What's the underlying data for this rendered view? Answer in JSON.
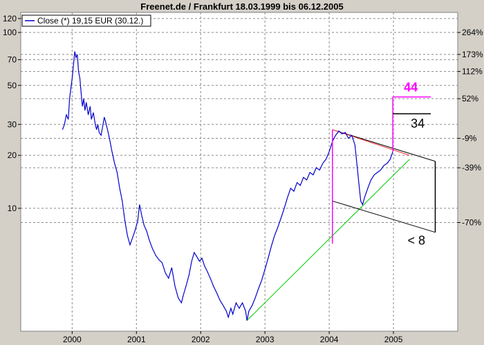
{
  "chart_data": {
    "type": "line",
    "title": "Freenet.de / Frankfurt 18.03.1999 bis 06.12.2005",
    "legend": "Close (*) 19,15 EUR (30.12.)",
    "legend_placement": "top-left",
    "y_scale": "log",
    "grid": true,
    "ylim": [
      2,
      130
    ],
    "xlim": [
      1999.2,
      2006.0
    ],
    "y_ticks_left": [
      10,
      20,
      30,
      50,
      70,
      100,
      120
    ],
    "y_ticks_right": [
      {
        "value": 100,
        "label": "264%"
      },
      {
        "value": 75,
        "label": "173%"
      },
      {
        "value": 60,
        "label": "112%"
      },
      {
        "value": 42,
        "label": "52%"
      },
      {
        "value": 25,
        "label": "-9%"
      },
      {
        "value": 17,
        "label": "-39%"
      },
      {
        "value": 8.3,
        "label": "-70%"
      }
    ],
    "x_ticks": [
      {
        "value": 2000,
        "label": "2000"
      },
      {
        "value": 2001,
        "label": "2001"
      },
      {
        "value": 2002,
        "label": "2002"
      },
      {
        "value": 2003,
        "label": "2003"
      },
      {
        "value": 2004,
        "label": "2004"
      },
      {
        "value": 2005,
        "label": "2005"
      }
    ],
    "series": [
      {
        "color": "#0000cc",
        "points": [
          [
            1999.85,
            28
          ],
          [
            1999.88,
            30
          ],
          [
            1999.91,
            34
          ],
          [
            1999.94,
            32
          ],
          [
            1999.96,
            42
          ],
          [
            2000.0,
            55
          ],
          [
            2000.02,
            65
          ],
          [
            2000.04,
            78
          ],
          [
            2000.06,
            72
          ],
          [
            2000.08,
            75
          ],
          [
            2000.1,
            60
          ],
          [
            2000.12,
            55
          ],
          [
            2000.14,
            45
          ],
          [
            2000.16,
            38
          ],
          [
            2000.18,
            42
          ],
          [
            2000.2,
            36
          ],
          [
            2000.22,
            40
          ],
          [
            2000.25,
            34
          ],
          [
            2000.28,
            38
          ],
          [
            2000.3,
            32
          ],
          [
            2000.33,
            35
          ],
          [
            2000.36,
            30
          ],
          [
            2000.38,
            28
          ],
          [
            2000.4,
            30
          ],
          [
            2000.42,
            27
          ],
          [
            2000.45,
            26
          ],
          [
            2000.48,
            30
          ],
          [
            2000.5,
            33
          ],
          [
            2000.52,
            31
          ],
          [
            2000.55,
            28
          ],
          [
            2000.58,
            25
          ],
          [
            2000.62,
            21
          ],
          [
            2000.66,
            18
          ],
          [
            2000.7,
            16
          ],
          [
            2000.74,
            13
          ],
          [
            2000.78,
            11
          ],
          [
            2000.82,
            8.5
          ],
          [
            2000.86,
            7
          ],
          [
            2000.9,
            6.2
          ],
          [
            2000.94,
            6.8
          ],
          [
            2000.98,
            7.5
          ],
          [
            2001.02,
            8.5
          ],
          [
            2001.05,
            10.5
          ],
          [
            2001.08,
            9.2
          ],
          [
            2001.12,
            8
          ],
          [
            2001.16,
            7.4
          ],
          [
            2001.2,
            6.6
          ],
          [
            2001.25,
            5.9
          ],
          [
            2001.3,
            5.4
          ],
          [
            2001.35,
            5.1
          ],
          [
            2001.4,
            4.9
          ],
          [
            2001.45,
            4.3
          ],
          [
            2001.5,
            4.0
          ],
          [
            2001.55,
            4.6
          ],
          [
            2001.6,
            3.6
          ],
          [
            2001.65,
            3.1
          ],
          [
            2001.7,
            2.9
          ],
          [
            2001.73,
            3.2
          ],
          [
            2001.78,
            3.7
          ],
          [
            2001.82,
            4.2
          ],
          [
            2001.86,
            5.0
          ],
          [
            2001.9,
            5.6
          ],
          [
            2001.94,
            5.3
          ],
          [
            2001.98,
            5.0
          ],
          [
            2002.02,
            5.2
          ],
          [
            2002.06,
            4.7
          ],
          [
            2002.1,
            4.4
          ],
          [
            2002.15,
            4.0
          ],
          [
            2002.2,
            3.6
          ],
          [
            2002.25,
            3.3
          ],
          [
            2002.3,
            3.0
          ],
          [
            2002.35,
            2.8
          ],
          [
            2002.4,
            2.6
          ],
          [
            2002.43,
            2.4
          ],
          [
            2002.47,
            2.7
          ],
          [
            2002.5,
            2.5
          ],
          [
            2002.55,
            2.9
          ],
          [
            2002.6,
            2.7
          ],
          [
            2002.65,
            2.9
          ],
          [
            2002.7,
            2.6
          ],
          [
            2002.72,
            2.3
          ],
          [
            2002.75,
            2.6
          ],
          [
            2002.8,
            2.8
          ],
          [
            2002.85,
            3.1
          ],
          [
            2002.9,
            3.5
          ],
          [
            2002.95,
            3.9
          ],
          [
            2003.0,
            4.5
          ],
          [
            2003.05,
            5.2
          ],
          [
            2003.1,
            6.1
          ],
          [
            2003.15,
            7.0
          ],
          [
            2003.2,
            7.8
          ],
          [
            2003.25,
            8.8
          ],
          [
            2003.3,
            10
          ],
          [
            2003.35,
            11.5
          ],
          [
            2003.4,
            13
          ],
          [
            2003.45,
            12.5
          ],
          [
            2003.5,
            14
          ],
          [
            2003.55,
            13.5
          ],
          [
            2003.6,
            15
          ],
          [
            2003.65,
            14.5
          ],
          [
            2003.7,
            16
          ],
          [
            2003.75,
            15.5
          ],
          [
            2003.8,
            17
          ],
          [
            2003.85,
            16.5
          ],
          [
            2003.9,
            18
          ],
          [
            2003.95,
            19
          ],
          [
            2004.0,
            21
          ],
          [
            2004.05,
            24
          ],
          [
            2004.1,
            26
          ],
          [
            2004.15,
            27.5
          ],
          [
            2004.2,
            26.5
          ],
          [
            2004.25,
            27
          ],
          [
            2004.3,
            25
          ],
          [
            2004.35,
            26
          ],
          [
            2004.4,
            23
          ],
          [
            2004.43,
            18
          ],
          [
            2004.46,
            14
          ],
          [
            2004.49,
            11
          ],
          [
            2004.52,
            10.5
          ],
          [
            2004.55,
            11.5
          ],
          [
            2004.6,
            13
          ],
          [
            2004.65,
            14.5
          ],
          [
            2004.7,
            15.5
          ],
          [
            2004.75,
            16
          ],
          [
            2004.8,
            16.5
          ],
          [
            2004.85,
            17.5
          ],
          [
            2004.9,
            18
          ],
          [
            2004.95,
            19
          ],
          [
            2004.99,
            21
          ]
        ]
      }
    ],
    "trendlines": [
      {
        "color": "#00cc00",
        "points": [
          [
            2002.72,
            2.3
          ],
          [
            2005.25,
            19
          ]
        ]
      },
      {
        "color": "#000000",
        "points": [
          [
            2004.05,
            28
          ],
          [
            2005.65,
            18.5
          ]
        ]
      },
      {
        "color": "#ff3333",
        "points": [
          [
            2004.05,
            28
          ],
          [
            2005.25,
            20
          ]
        ]
      },
      {
        "color": "#000000",
        "points": [
          [
            2004.05,
            11
          ],
          [
            2005.65,
            7.3
          ]
        ]
      }
    ],
    "annotations": [
      {
        "text": "44",
        "color": "#ff00ff"
      },
      {
        "text": "34",
        "color": "#000000"
      },
      {
        "text": "< 8",
        "color": "#000000"
      }
    ]
  }
}
